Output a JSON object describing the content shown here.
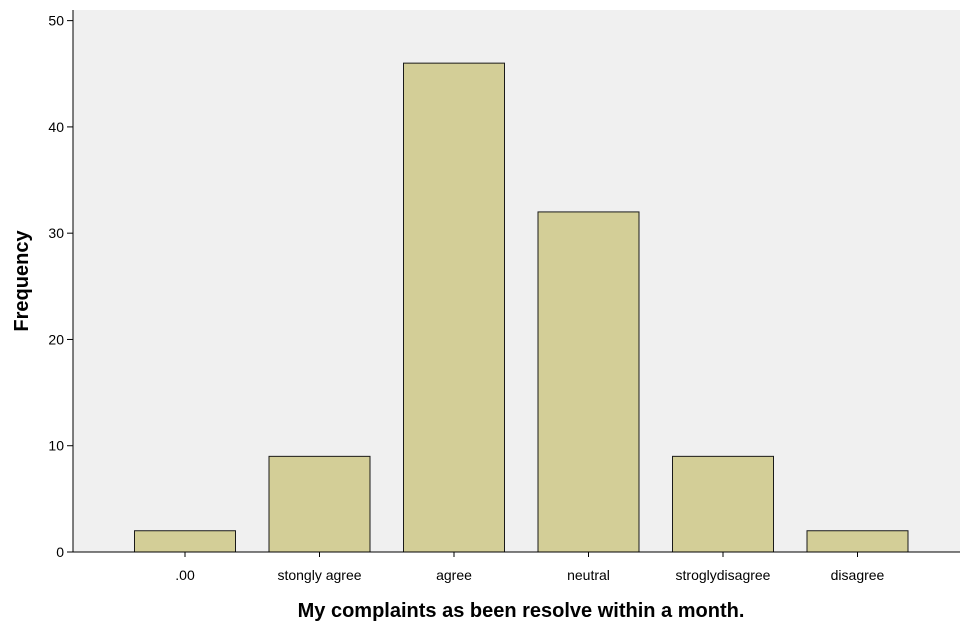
{
  "chart_data": {
    "type": "bar",
    "title": "",
    "xlabel": "My complaints as been resolve within a month.",
    "ylabel": "Frequency",
    "categories": [
      ".00",
      "stongly agree",
      "agree",
      "neutral",
      "stroglydisagree",
      "disagree"
    ],
    "values": [
      2,
      9,
      46,
      32,
      9,
      2
    ],
    "ylim": [
      0,
      51
    ],
    "yticks": [
      0,
      10,
      20,
      30,
      40,
      50
    ],
    "ytick_labels": [
      "0",
      "10",
      "20",
      "30",
      "40",
      "50"
    ],
    "grid": false,
    "legend": "none",
    "colors": {
      "plot_background": "#f0f0f0",
      "bar_fill": "#d3ce97",
      "bar_stroke": "#1a1a1a",
      "axis": "#000000"
    }
  }
}
